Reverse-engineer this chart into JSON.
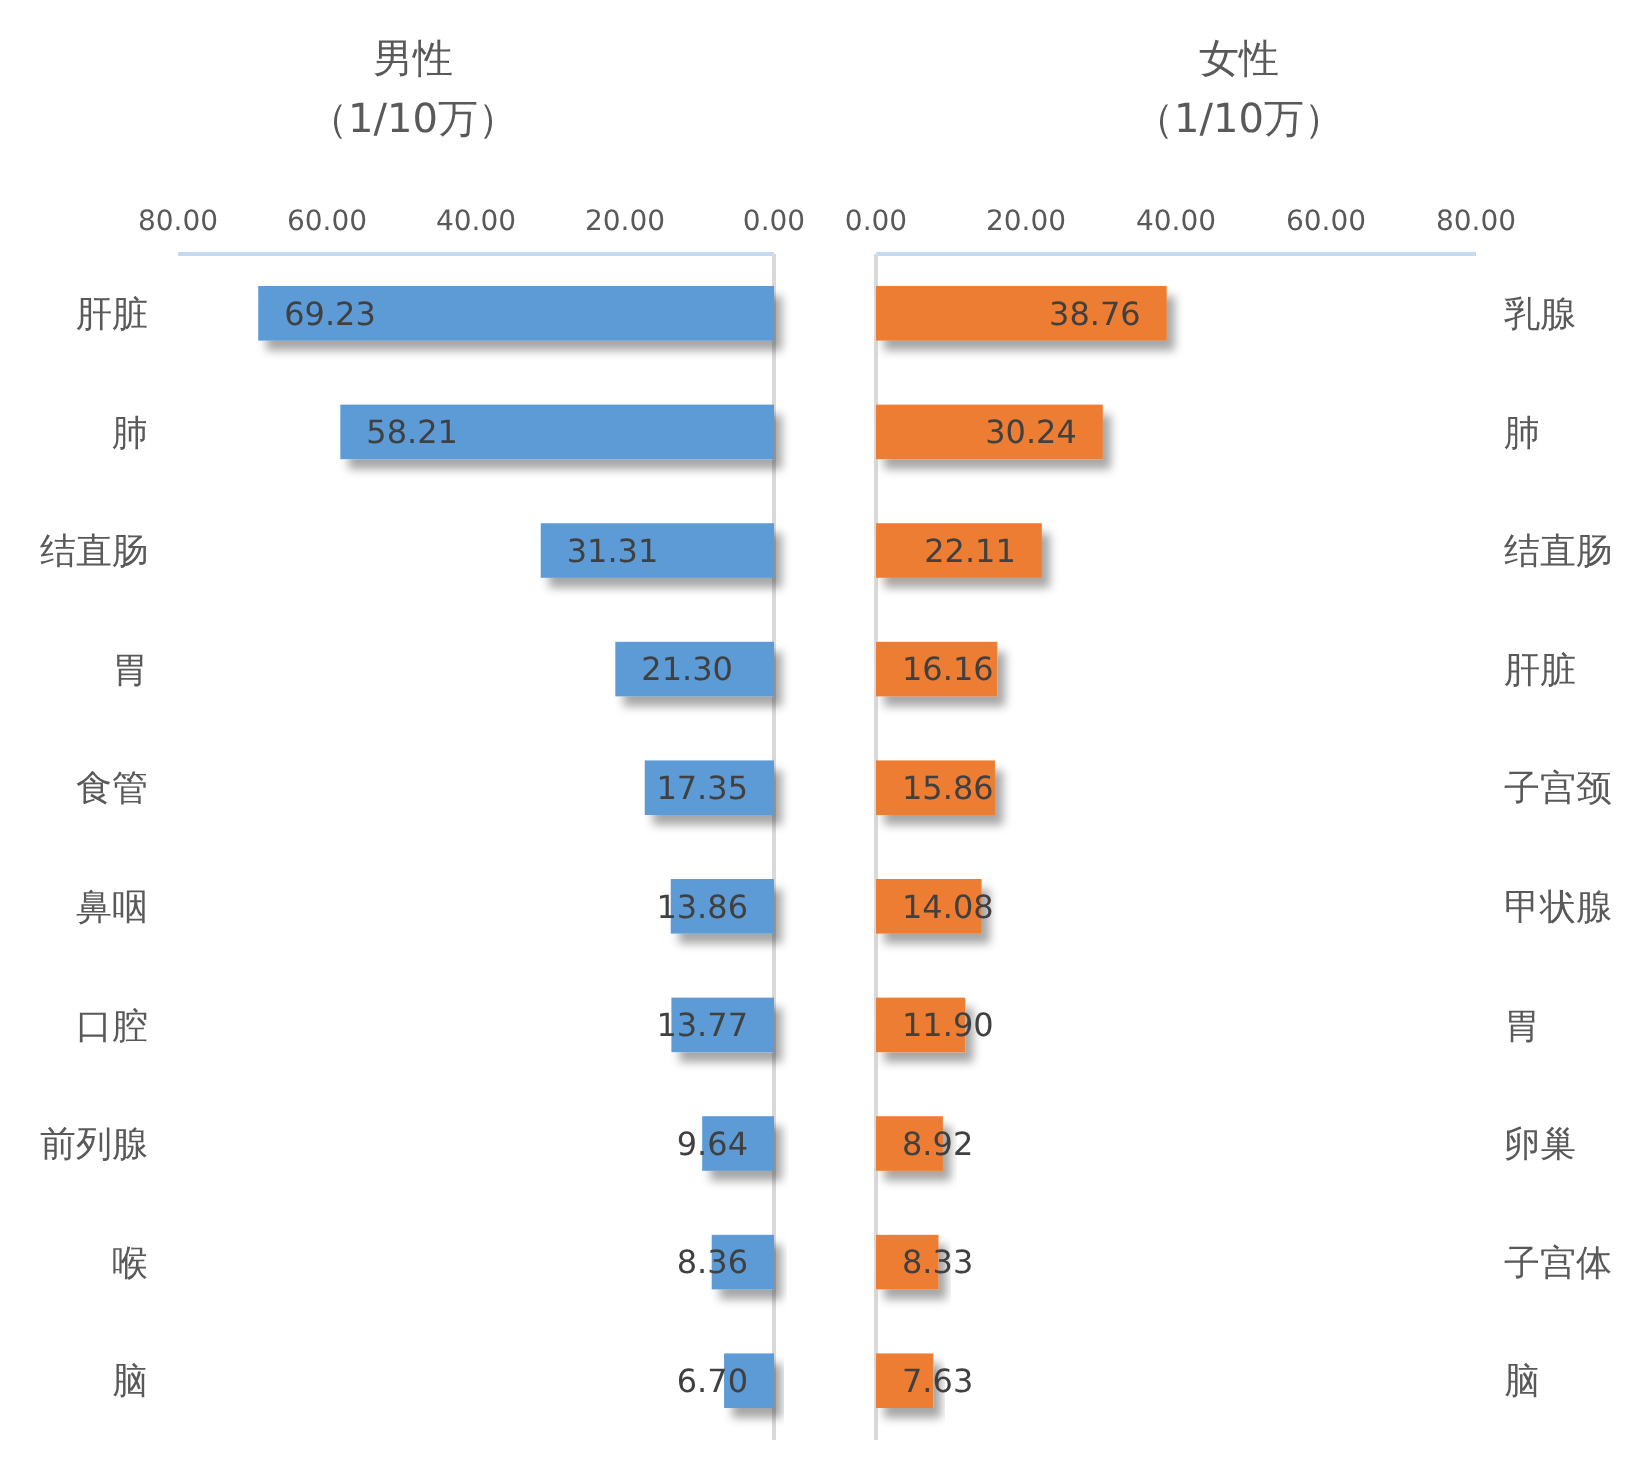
{
  "chart_data": [
    {
      "type": "bar",
      "orientation": "horizontal",
      "title": "男性",
      "subtitle": "（1/10万）",
      "categories": [
        "肝脏",
        "肺",
        "结直肠",
        "胃",
        "食管",
        "鼻咽",
        "口腔",
        "前列腺",
        "喉",
        "脑"
      ],
      "values": [
        69.23,
        58.21,
        31.31,
        21.3,
        17.35,
        13.86,
        13.77,
        9.64,
        8.36,
        6.7
      ],
      "value_labels": [
        "69.23",
        "58.21",
        "31.31",
        "21.30",
        "17.35",
        "13.86",
        "13.77",
        "9.64",
        "8.36",
        "6.70"
      ],
      "color": "#5b9bd5",
      "xlim": [
        80,
        0
      ],
      "xticks": [
        {
          "value": 80,
          "label": "80.00"
        },
        {
          "value": 60,
          "label": "60.00"
        },
        {
          "value": 40,
          "label": "40.00"
        },
        {
          "value": 20,
          "label": "20.00"
        },
        {
          "value": 0,
          "label": "0.00"
        }
      ]
    },
    {
      "type": "bar",
      "orientation": "horizontal",
      "title": "女性",
      "subtitle": "（1/10万）",
      "categories": [
        "乳腺",
        "肺",
        "结直肠",
        "肝脏",
        "子宫颈",
        "甲状腺",
        "胃",
        "卵巢",
        "子宫体",
        "脑"
      ],
      "values": [
        38.76,
        30.24,
        22.11,
        16.16,
        15.86,
        14.08,
        11.9,
        8.92,
        8.33,
        7.63
      ],
      "value_labels": [
        "38.76",
        "30.24",
        "22.11",
        "16.16",
        "15.86",
        "14.08",
        "11.90",
        "8.92",
        "8.33",
        "7.63"
      ],
      "color": "#ed7d31",
      "xlim": [
        0,
        80
      ],
      "xticks": [
        {
          "value": 0,
          "label": "0.00"
        },
        {
          "value": 20,
          "label": "20.00"
        },
        {
          "value": 40,
          "label": "40.00"
        },
        {
          "value": 60,
          "label": "60.00"
        },
        {
          "value": 80,
          "label": "80.00"
        }
      ]
    }
  ]
}
